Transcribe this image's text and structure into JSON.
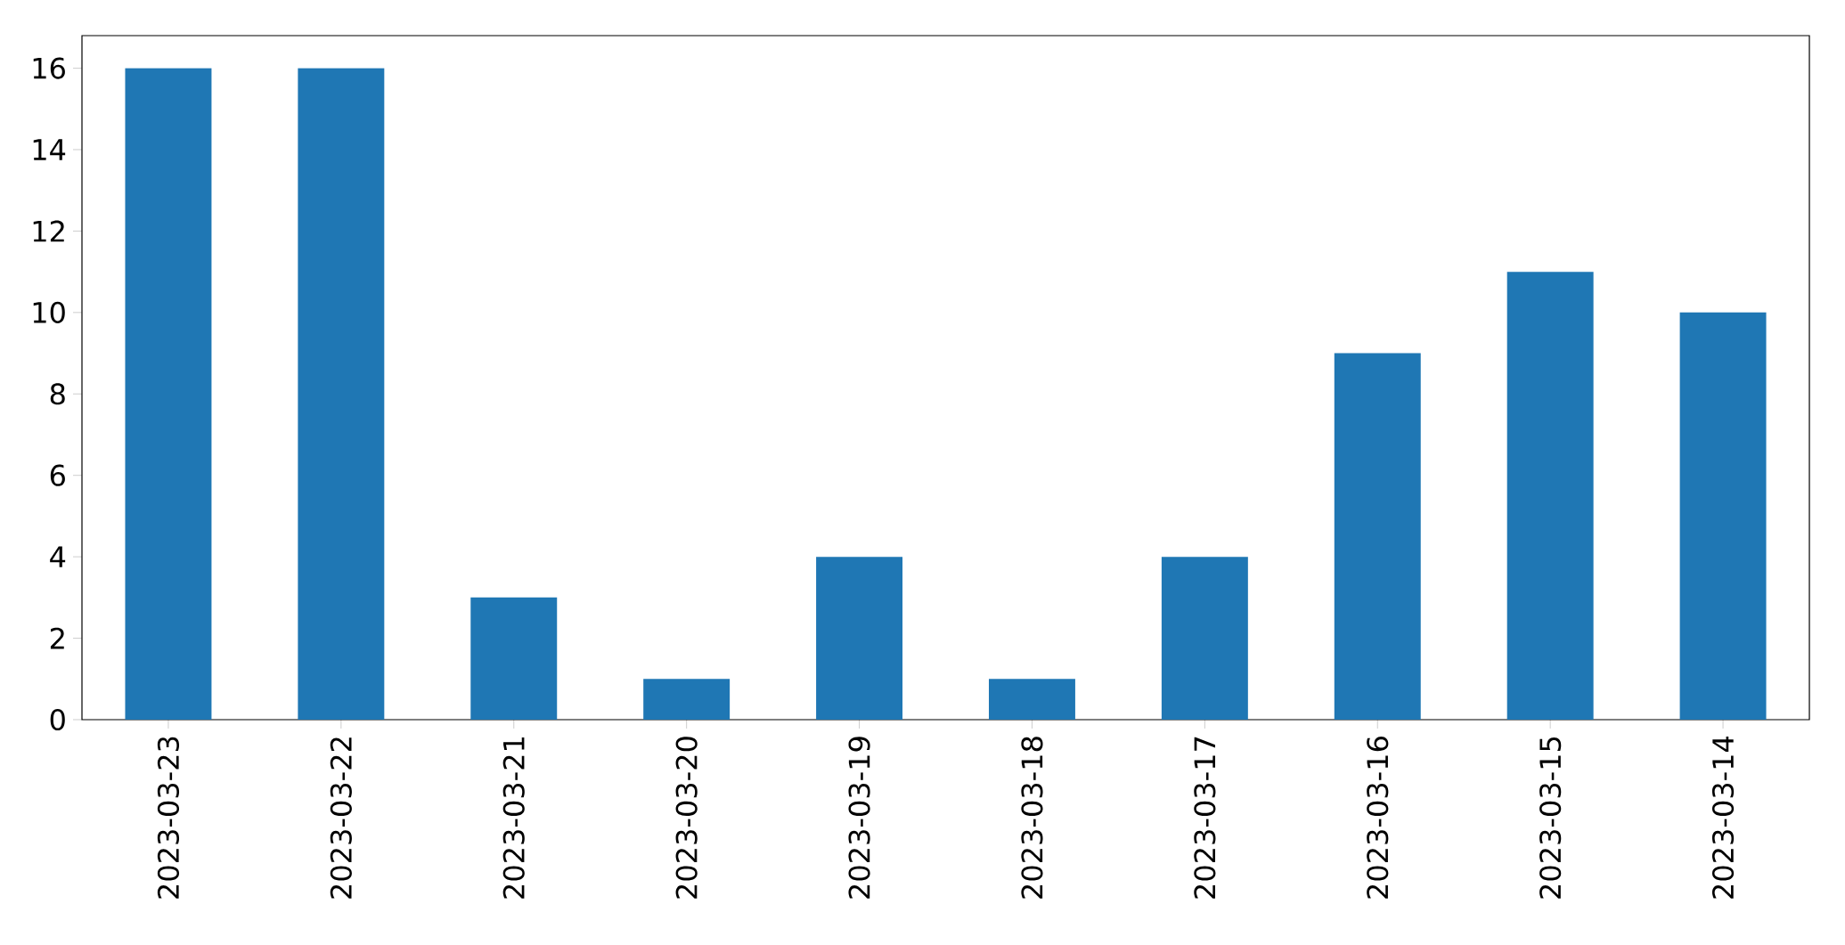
{
  "chart_data": {
    "type": "bar",
    "categories": [
      "2023-03-23",
      "2023-03-22",
      "2023-03-21",
      "2023-03-20",
      "2023-03-19",
      "2023-03-18",
      "2023-03-17",
      "2023-03-16",
      "2023-03-15",
      "2023-03-14"
    ],
    "values": [
      16,
      16,
      3,
      1,
      4,
      1,
      4,
      9,
      11,
      10
    ],
    "color": "#1f77b4",
    "ylim": [
      0,
      16.8
    ],
    "yticks": [
      0,
      2,
      4,
      6,
      8,
      10,
      12,
      14,
      16
    ]
  }
}
